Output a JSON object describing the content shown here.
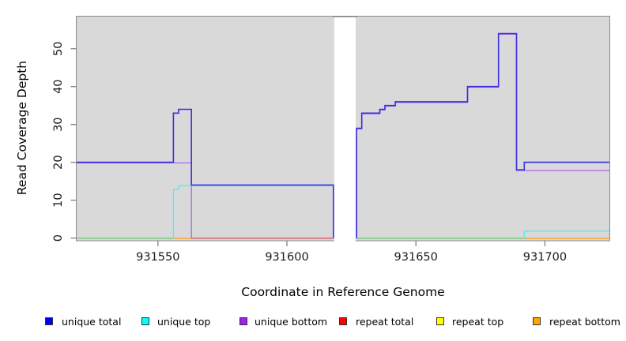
{
  "figure": {
    "background": "#ffffff",
    "plot_bg": "#d9d9d9",
    "border_color": "#8a8a8a",
    "tick_color": "#808080",
    "text_color": "#1a1a1a"
  },
  "axes": {
    "x_label": "Coordinate in Reference Genome",
    "y_label": "Read Coverage Depth",
    "x_ticks": [
      931550,
      931600,
      931650,
      931700
    ],
    "y_ticks": [
      0,
      10,
      20,
      30,
      40,
      50
    ]
  },
  "chart_data": {
    "type": "line",
    "subtype": "step",
    "title": "",
    "xlabel": "Coordinate in Reference Genome",
    "ylabel": "Read Coverage Depth",
    "xlim": [
      931518.5,
      931725
    ],
    "ylim": [
      -0.3,
      58.7
    ],
    "grid": false,
    "legend_position": "bottom",
    "x_ticks": [
      931550,
      931600,
      931650,
      931700
    ],
    "y_ticks": [
      0,
      10,
      20,
      30,
      40,
      50
    ],
    "gap_region": {
      "from": 931618,
      "to": 931627
    },
    "series": [
      {
        "name": "unique total",
        "legend_color": "#0000ff",
        "render_color": "#3b2fe0",
        "points": [
          [
            931518.5,
            20
          ],
          [
            931556,
            33
          ],
          [
            931558,
            34
          ],
          [
            931563,
            14
          ],
          [
            931618,
            0
          ],
          [
            931627,
            29
          ],
          [
            931629,
            33
          ],
          [
            931636,
            34
          ],
          [
            931638,
            35
          ],
          [
            931642,
            36
          ],
          [
            931670,
            40
          ],
          [
            931682,
            54
          ],
          [
            931689,
            18
          ],
          [
            931692,
            20
          ],
          [
            931725,
            20
          ]
        ]
      },
      {
        "name": "unique top",
        "legend_color": "#00ffff",
        "render_color": "#5fe6ea",
        "points": [
          [
            931518.5,
            0
          ],
          [
            931556,
            13
          ],
          [
            931558,
            14
          ],
          [
            931618,
            0
          ],
          [
            931692,
            2
          ],
          [
            931725,
            2
          ]
        ]
      },
      {
        "name": "unique bottom",
        "legend_color": "#a020f0",
        "render_color": "#aa66ee",
        "points": [
          [
            931518.5,
            20
          ],
          [
            931563,
            0
          ],
          [
            931618,
            0
          ],
          [
            931627,
            29
          ],
          [
            931629,
            33
          ],
          [
            931636,
            34
          ],
          [
            931638,
            35
          ],
          [
            931642,
            36
          ],
          [
            931670,
            40
          ],
          [
            931682,
            54
          ],
          [
            931689,
            18
          ],
          [
            931725,
            18
          ]
        ]
      },
      {
        "name": "repeat total",
        "legend_color": "#ff0000",
        "render_color": "#d4586e",
        "points": [
          [
            931518.5,
            0
          ],
          [
            931725,
            0
          ]
        ]
      },
      {
        "name": "repeat top",
        "legend_color": "#ffff00",
        "render_color": "#ffff00",
        "points": [
          [
            931518.5,
            0
          ],
          [
            931725,
            0
          ]
        ]
      },
      {
        "name": "repeat bottom",
        "legend_color": "#ffa500",
        "render_color": "#ffa01e",
        "points": [
          [
            931518.5,
            0
          ],
          [
            931725,
            0
          ]
        ]
      }
    ],
    "zero_line_visible_segments": [
      {
        "from": 931518.5,
        "to": 931556,
        "color": "#74c776"
      },
      {
        "from": 931556,
        "to": 931563,
        "color": "#ffa01e"
      },
      {
        "from": 931563,
        "to": 931618,
        "color": "#d4586e"
      },
      {
        "from": 931627,
        "to": 931692,
        "color": "#74c776"
      },
      {
        "from": 931692,
        "to": 931725,
        "color": "#ffa01e"
      }
    ],
    "visible_paths": {
      "unique_bottom": [
        [
          [
            931518.5,
            20
          ],
          [
            931563,
            20
          ],
          [
            931563,
            0
          ]
        ],
        [
          [
            931627,
            0
          ],
          [
            931627,
            29
          ],
          [
            931629,
            29
          ],
          [
            931629,
            33
          ],
          [
            931636,
            33
          ],
          [
            931636,
            34
          ],
          [
            931638,
            34
          ],
          [
            931638,
            35
          ],
          [
            931642,
            35
          ],
          [
            931642,
            36
          ],
          [
            931670,
            36
          ],
          [
            931670,
            40
          ],
          [
            931682,
            40
          ],
          [
            931682,
            54
          ],
          [
            931689,
            54
          ],
          [
            931689,
            18
          ],
          [
            931725,
            18
          ]
        ]
      ],
      "unique_top": [
        [
          [
            931556,
            0
          ],
          [
            931556,
            13
          ],
          [
            931558,
            13
          ],
          [
            931558,
            14
          ],
          [
            931618,
            14
          ],
          [
            931618,
            0
          ]
        ],
        [
          [
            931692,
            0
          ],
          [
            931692,
            2
          ],
          [
            931725,
            2
          ]
        ]
      ],
      "unique_total": [
        [
          [
            931518.5,
            20
          ],
          [
            931556,
            20
          ],
          [
            931556,
            33
          ],
          [
            931558,
            33
          ],
          [
            931558,
            34
          ],
          [
            931563,
            34
          ],
          [
            931563,
            14
          ],
          [
            931618,
            14
          ],
          [
            931618,
            0
          ]
        ],
        [
          [
            931627,
            0
          ],
          [
            931627,
            29
          ],
          [
            931629,
            29
          ],
          [
            931629,
            33
          ],
          [
            931636,
            33
          ],
          [
            931636,
            34
          ],
          [
            931638,
            34
          ],
          [
            931638,
            35
          ],
          [
            931642,
            35
          ],
          [
            931642,
            36
          ],
          [
            931670,
            36
          ],
          [
            931670,
            40
          ],
          [
            931682,
            40
          ],
          [
            931682,
            54
          ],
          [
            931689,
            54
          ],
          [
            931689,
            18
          ],
          [
            931692,
            18
          ],
          [
            931692,
            20
          ],
          [
            931725,
            20
          ]
        ]
      ]
    }
  },
  "legend": {
    "items": [
      {
        "label": "unique total",
        "color": "#0000ff"
      },
      {
        "label": "unique top",
        "color": "#00ffff"
      },
      {
        "label": "unique bottom",
        "color": "#a020f0"
      },
      {
        "label": "repeat total",
        "color": "#ff0000"
      },
      {
        "label": "repeat top",
        "color": "#ffff00"
      },
      {
        "label": "repeat bottom",
        "color": "#ffa500"
      }
    ]
  }
}
